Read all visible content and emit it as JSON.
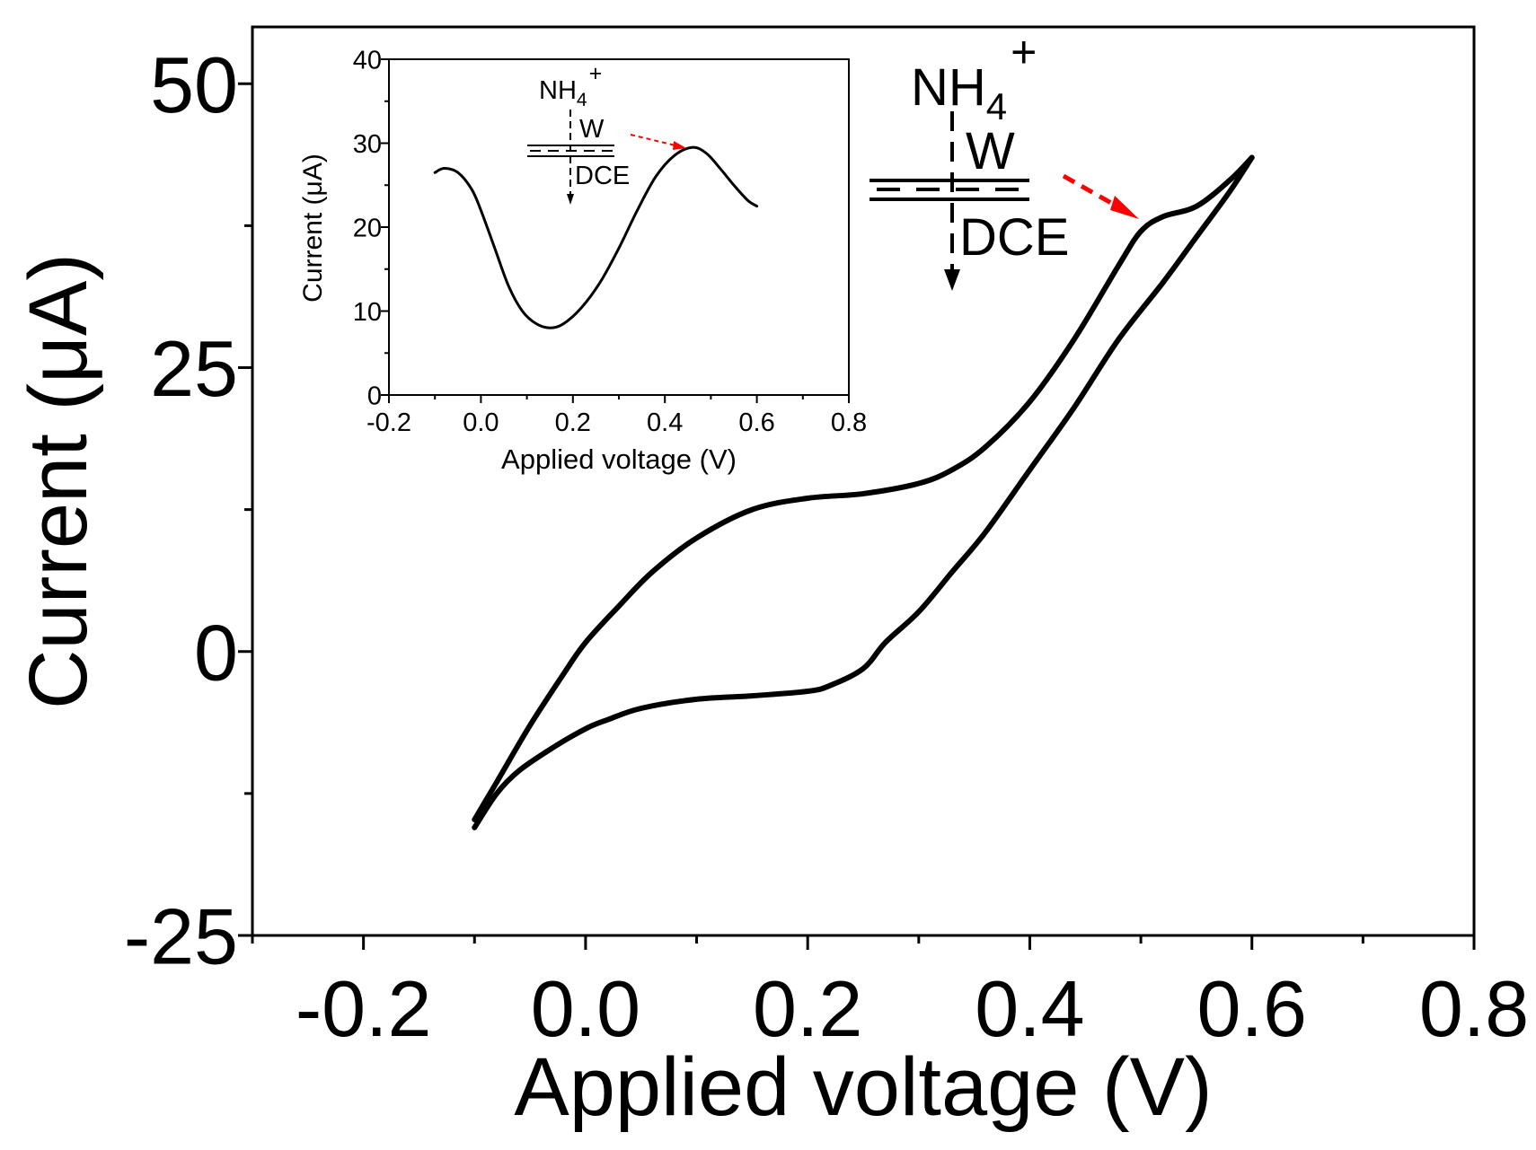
{
  "chart_data": [
    {
      "type": "line",
      "xlabel": "Applied voltage (V)",
      "ylabel": "Current (μA)",
      "xlim": [
        -0.3,
        0.8
      ],
      "ylim": [
        -25,
        55
      ],
      "x_ticks": [
        "-0.2",
        "0.0",
        "0.2",
        "0.4",
        "0.6",
        "0.8"
      ],
      "x_tick_values": [
        -0.2,
        0.0,
        0.2,
        0.4,
        0.6,
        0.8
      ],
      "y_ticks": [
        "-25",
        "0",
        "25",
        "50"
      ],
      "y_tick_values": [
        -25,
        0,
        25,
        50
      ],
      "grid": false,
      "series": [
        {
          "x": [
            -0.1,
            -0.08,
            -0.05,
            -0.02,
            0.0,
            0.03,
            0.06,
            0.1,
            0.15,
            0.2,
            0.25,
            0.3,
            0.33,
            0.36,
            0.4,
            0.44,
            0.48,
            0.5,
            0.52,
            0.55,
            0.58,
            0.6
          ],
          "y": [
            -14.8,
            -11.5,
            -6.5,
            -2.0,
            0.8,
            4.0,
            7.0,
            10.0,
            12.5,
            13.5,
            13.9,
            14.8,
            16.0,
            18.0,
            22.0,
            27.5,
            34.0,
            37.0,
            38.3,
            39.2,
            41.5,
            43.5
          ]
        },
        {
          "x": [
            0.6,
            0.58,
            0.55,
            0.52,
            0.48,
            0.44,
            0.4,
            0.36,
            0.33,
            0.3,
            0.27,
            0.25,
            0.22,
            0.2,
            0.15,
            0.1,
            0.05,
            0.02,
            0.0,
            -0.03,
            -0.06,
            -0.08,
            -0.1
          ],
          "y": [
            43.5,
            40.5,
            36.5,
            32.5,
            27.5,
            21.5,
            16.0,
            10.5,
            7.0,
            3.5,
            0.8,
            -1.5,
            -3.0,
            -3.5,
            -3.9,
            -4.2,
            -5.0,
            -6.0,
            -6.8,
            -8.5,
            -10.5,
            -12.5,
            -15.5
          ]
        }
      ],
      "annotation": {
        "ion": "NH",
        "ion_subscript": "4",
        "ion_superscript": "+",
        "upper_phase": "W",
        "lower_phase": "DCE",
        "arrow_color": "#ff0000"
      }
    },
    {
      "type": "line",
      "xlabel": "Applied voltage (V)",
      "ylabel": "Current (μA)",
      "xlim": [
        -0.2,
        0.8
      ],
      "ylim": [
        0,
        40
      ],
      "x_ticks": [
        "-0.2",
        "0.0",
        "0.2",
        "0.4",
        "0.6",
        "0.8"
      ],
      "x_tick_values": [
        -0.2,
        0.0,
        0.2,
        0.4,
        0.6,
        0.8
      ],
      "y_ticks": [
        "0",
        "10",
        "20",
        "30",
        "40"
      ],
      "y_tick_values": [
        0,
        10,
        20,
        30,
        40
      ],
      "grid": false,
      "series": [
        {
          "x": [
            -0.1,
            -0.08,
            -0.05,
            -0.02,
            0.0,
            0.03,
            0.06,
            0.09,
            0.12,
            0.15,
            0.18,
            0.22,
            0.26,
            0.3,
            0.34,
            0.38,
            0.42,
            0.46,
            0.49,
            0.52,
            0.55,
            0.58,
            0.6
          ],
          "y": [
            26.5,
            27.0,
            26.5,
            24.5,
            22.0,
            17.5,
            13.0,
            10.0,
            8.5,
            8.0,
            8.5,
            10.5,
            13.5,
            17.5,
            22.0,
            26.0,
            28.5,
            29.5,
            28.8,
            27.0,
            25.0,
            23.2,
            22.5
          ]
        }
      ],
      "annotation": {
        "ion": "NH",
        "ion_subscript": "4",
        "ion_superscript": "+",
        "upper_phase": "W",
        "lower_phase": "DCE",
        "arrow_color": "#ff0000"
      }
    }
  ]
}
